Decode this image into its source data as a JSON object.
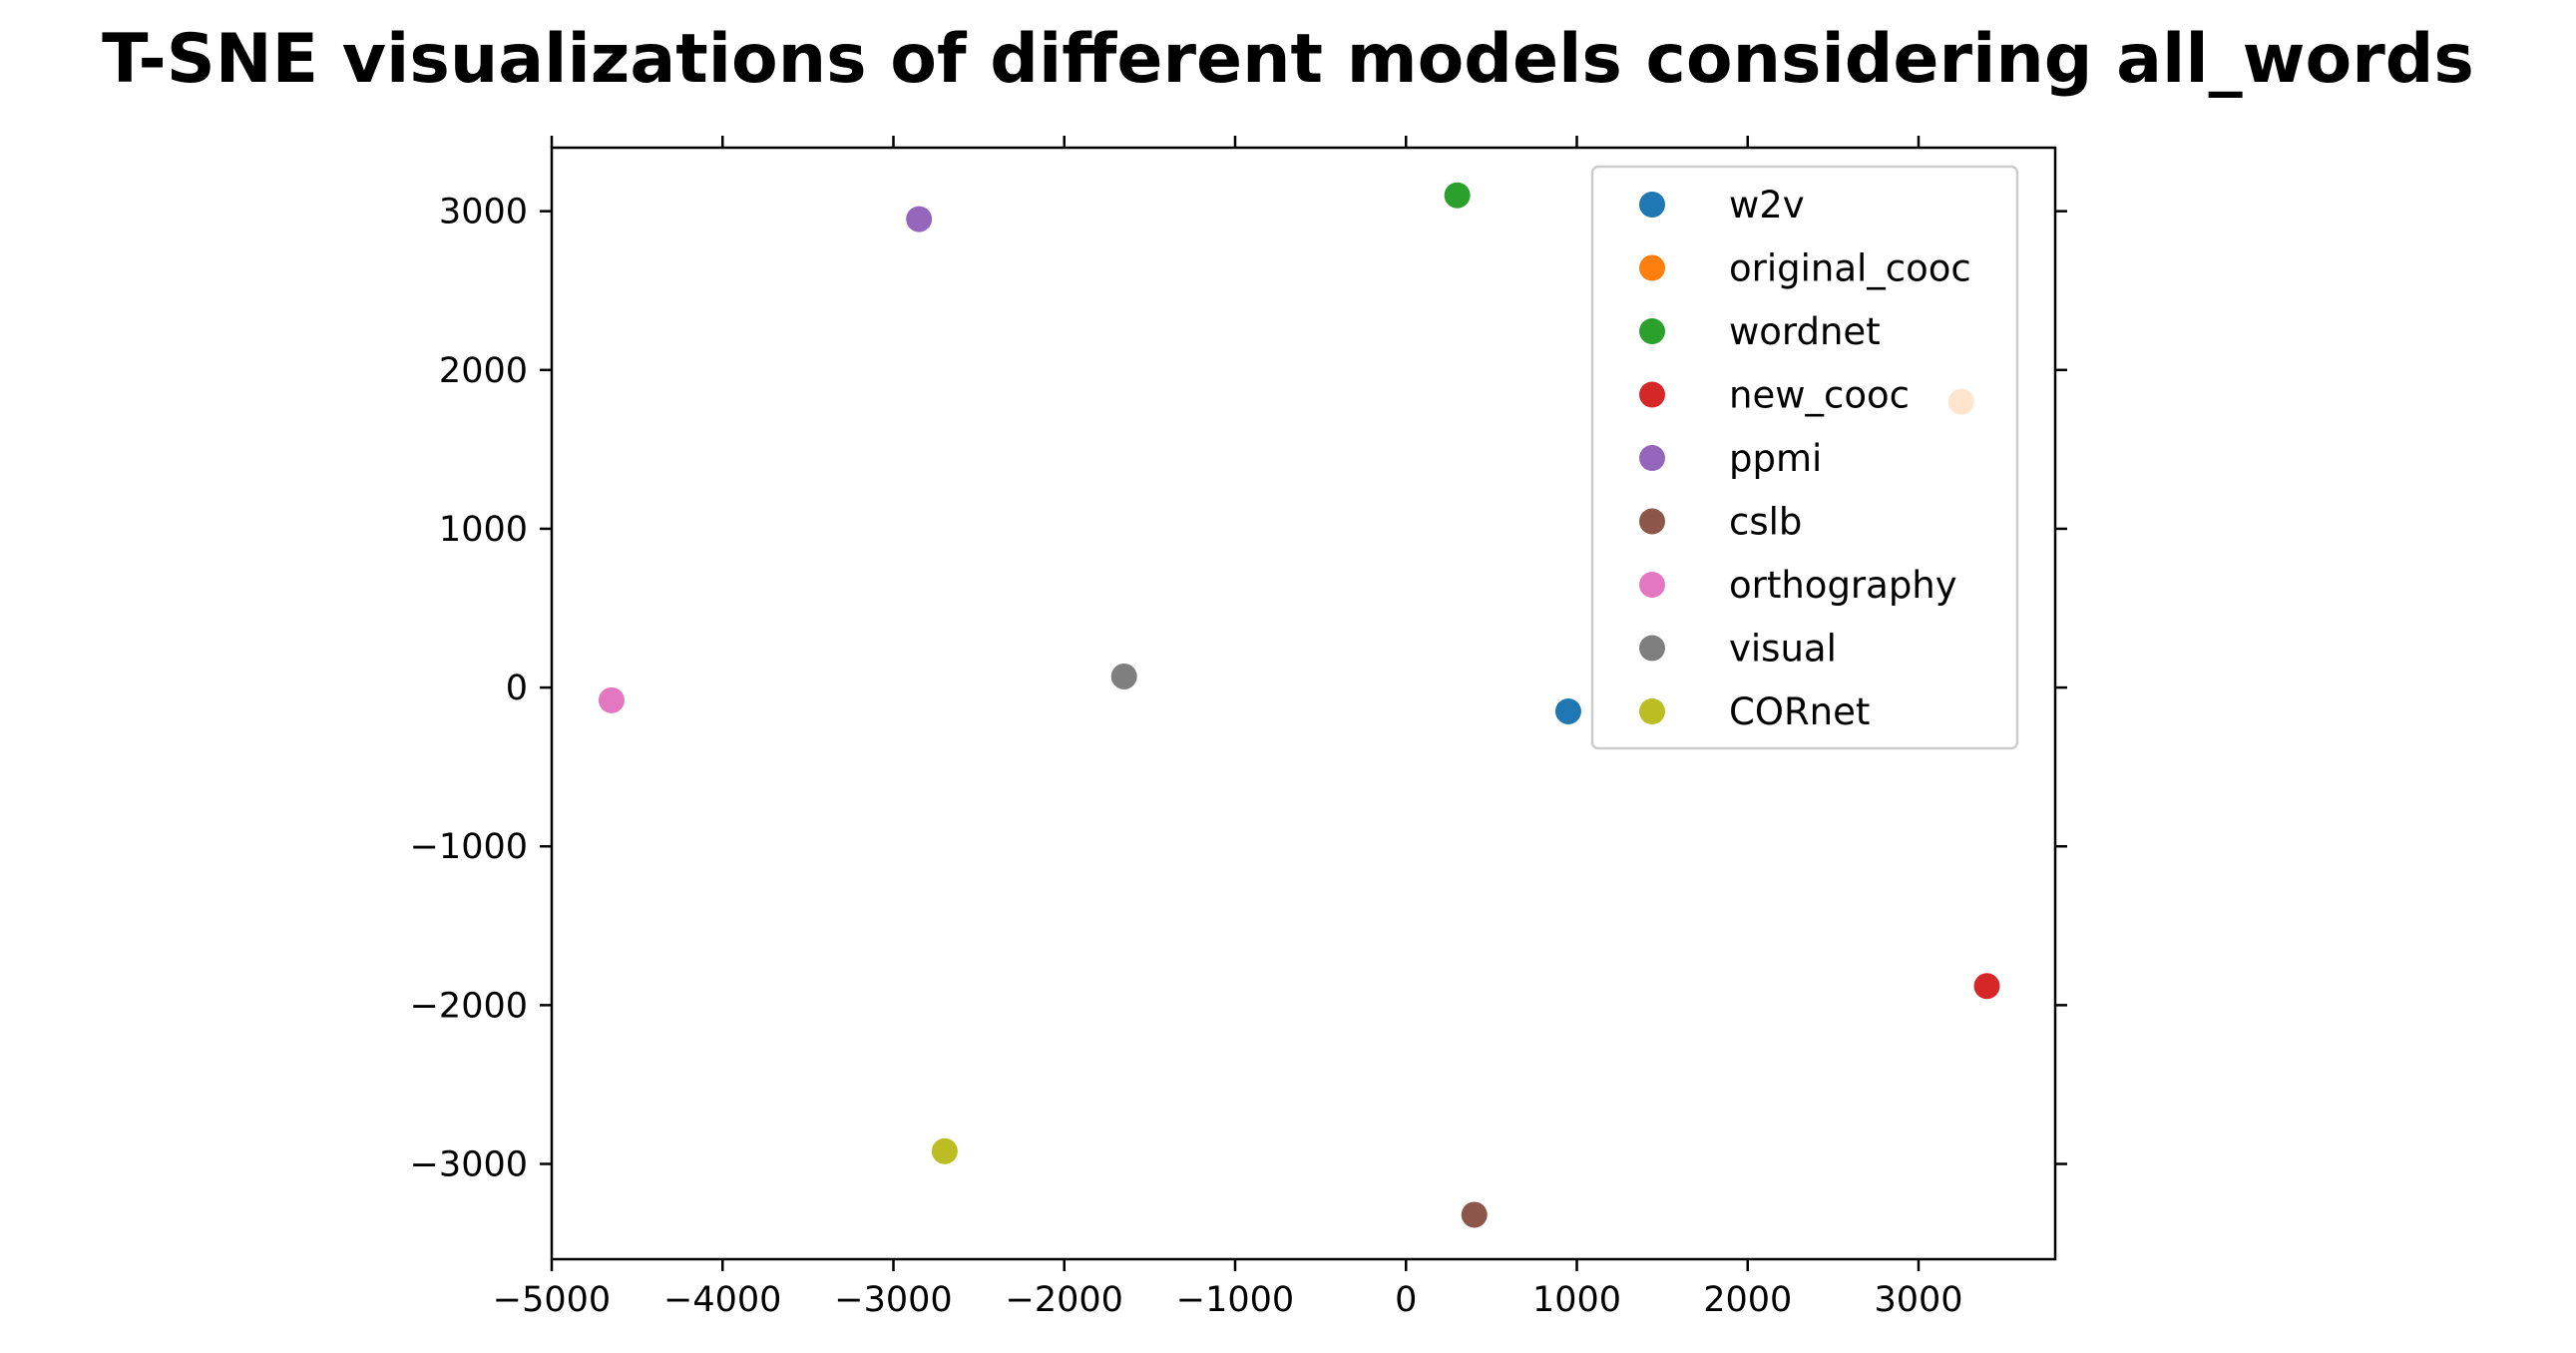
{
  "chart_data": {
    "type": "scatter",
    "title": "T-SNE visualizations of different models considering all_words",
    "xlabel": "",
    "ylabel": "",
    "xlim": [
      -5000,
      3800
    ],
    "ylim": [
      -3600,
      3400
    ],
    "x_ticks": [
      -5000,
      -4000,
      -3000,
      -2000,
      -1000,
      0,
      1000,
      2000,
      3000
    ],
    "y_ticks": [
      3000,
      2000,
      1000,
      0,
      -1000,
      -2000,
      -3000
    ],
    "x_tick_labels": [
      "−5000",
      "−4000",
      "−3000",
      "−2000",
      "−1000",
      "0",
      "1000",
      "2000",
      "3000"
    ],
    "y_tick_labels": [
      "3000",
      "2000",
      "1000",
      "0",
      "−1000",
      "−2000",
      "−3000"
    ],
    "grid": false,
    "legend_position": "top-right",
    "series": [
      {
        "name": "w2v",
        "color": "#1f77b4",
        "x": 950,
        "y": -150
      },
      {
        "name": "original_cooc",
        "color": "#ff7f0e",
        "x": 3250,
        "y": 1800
      },
      {
        "name": "wordnet",
        "color": "#2ca02c",
        "x": 300,
        "y": 3100
      },
      {
        "name": "new_cooc",
        "color": "#d62728",
        "x": 3400,
        "y": -1880
      },
      {
        "name": "ppmi",
        "color": "#9467bd",
        "x": -2850,
        "y": 2950
      },
      {
        "name": "cslb",
        "color": "#8c564b",
        "x": 400,
        "y": -3320
      },
      {
        "name": "orthography",
        "color": "#e377c2",
        "x": -4650,
        "y": -80
      },
      {
        "name": "visual",
        "color": "#7f7f7f",
        "x": -1650,
        "y": 70
      },
      {
        "name": "CORnet",
        "color": "#bcbd22",
        "x": -2700,
        "y": -2920
      }
    ]
  }
}
